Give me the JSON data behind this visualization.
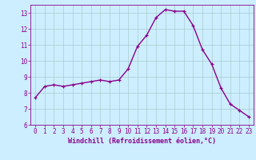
{
  "x": [
    0,
    1,
    2,
    3,
    4,
    5,
    6,
    7,
    8,
    9,
    10,
    11,
    12,
    13,
    14,
    15,
    16,
    17,
    18,
    19,
    20,
    21,
    22,
    23
  ],
  "y": [
    7.7,
    8.4,
    8.5,
    8.4,
    8.5,
    8.6,
    8.7,
    8.8,
    8.7,
    8.8,
    9.5,
    10.9,
    11.6,
    12.7,
    13.2,
    13.1,
    13.1,
    12.2,
    10.7,
    9.8,
    8.3,
    7.3,
    6.9,
    6.5
  ],
  "line_color": "#8B008B",
  "marker": "+",
  "marker_color": "#8B008B",
  "bg_color": "#cceeff",
  "grid_color": "#aacccc",
  "xlabel": "Windchill (Refroidissement éolien,°C)",
  "xlim": [
    -0.5,
    23.5
  ],
  "ylim": [
    6,
    13.5
  ],
  "xticks": [
    0,
    1,
    2,
    3,
    4,
    5,
    6,
    7,
    8,
    9,
    10,
    11,
    12,
    13,
    14,
    15,
    16,
    17,
    18,
    19,
    20,
    21,
    22,
    23
  ],
  "yticks": [
    6,
    7,
    8,
    9,
    10,
    11,
    12,
    13
  ],
  "axis_label_color": "#8B008B",
  "tick_color": "#8B008B",
  "linewidth": 1.0,
  "markersize": 3.5,
  "tick_fontsize": 5.5,
  "xlabel_fontsize": 6.0
}
